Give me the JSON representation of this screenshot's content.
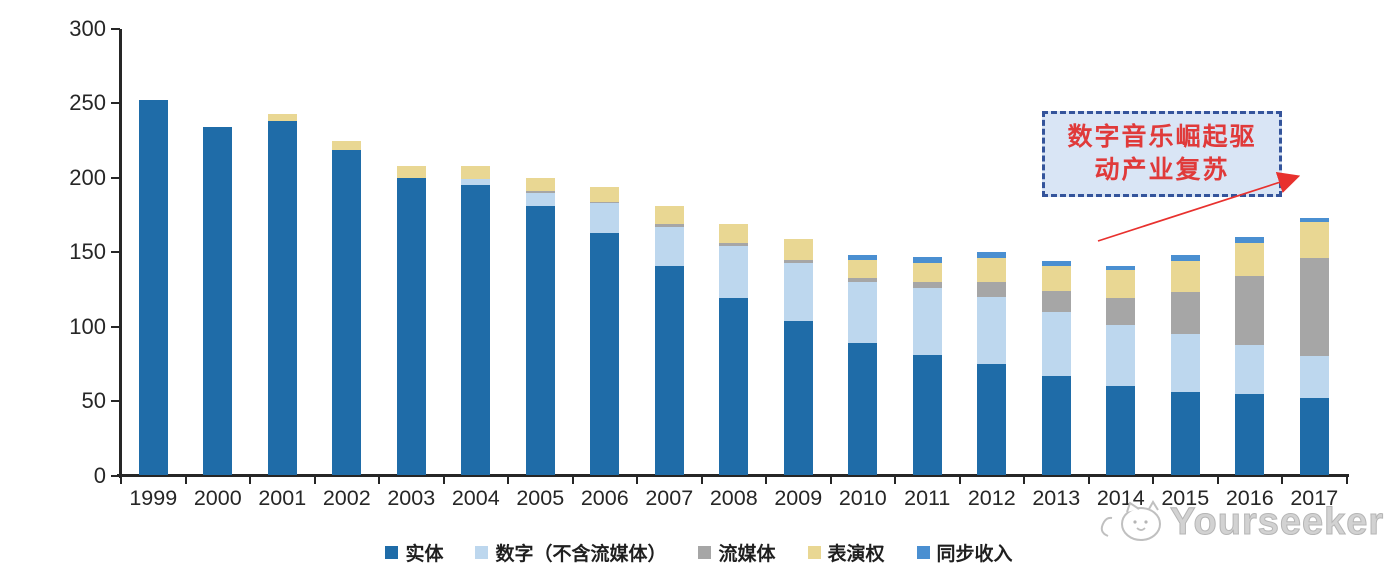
{
  "chart_data": {
    "type": "bar",
    "stacked": true,
    "title": "",
    "xlabel": "",
    "ylabel": "",
    "ylim": [
      0,
      300
    ],
    "yticks": [
      0,
      50,
      100,
      150,
      200,
      250,
      300
    ],
    "grid": false,
    "legend_position": "bottom",
    "categories": [
      "1999",
      "2000",
      "2001",
      "2002",
      "2003",
      "2004",
      "2005",
      "2006",
      "2007",
      "2008",
      "2009",
      "2010",
      "2011",
      "2012",
      "2013",
      "2014",
      "2015",
      "2016",
      "2017"
    ],
    "series": [
      {
        "name": "实体",
        "color": "#1f6ca8",
        "values": [
          252,
          234,
          238,
          219,
          200,
          195,
          181,
          163,
          141,
          119,
          104,
          89,
          81,
          75,
          67,
          60,
          56,
          55,
          52
        ]
      },
      {
        "name": "数字（不含流媒体）",
        "color": "#bdd7ee",
        "values": [
          0,
          0,
          0,
          0,
          0,
          4,
          9,
          20,
          26,
          35,
          39,
          41,
          45,
          45,
          43,
          41,
          39,
          33,
          28
        ]
      },
      {
        "name": "流媒体",
        "color": "#a6a6a6",
        "values": [
          0,
          0,
          0,
          0,
          0,
          0,
          1,
          1,
          2,
          2,
          2,
          3,
          4,
          10,
          14,
          18,
          28,
          46,
          66
        ]
      },
      {
        "name": "表演权",
        "color": "#e9d793",
        "values": [
          0,
          0,
          5,
          6,
          8,
          9,
          9,
          10,
          12,
          13,
          14,
          12,
          13,
          16,
          17,
          19,
          21,
          22,
          24
        ]
      },
      {
        "name": "同步收入",
        "color": "#4a8fd1",
        "values": [
          0,
          0,
          0,
          0,
          0,
          0,
          0,
          0,
          0,
          0,
          0,
          3,
          4,
          4,
          3,
          3,
          4,
          4,
          3
        ]
      }
    ]
  },
  "annotation": {
    "line1": "数字音乐崛起驱",
    "line2": "动产业复苏",
    "text_color": "#e03a3a",
    "box_fill": "#d9e5f5",
    "box_border": "#34549b",
    "arrow_color": "#e8312e"
  },
  "watermark": {
    "text": "Yourseeker",
    "icon": "cat-face-icon",
    "color": "#c8c8c8"
  }
}
